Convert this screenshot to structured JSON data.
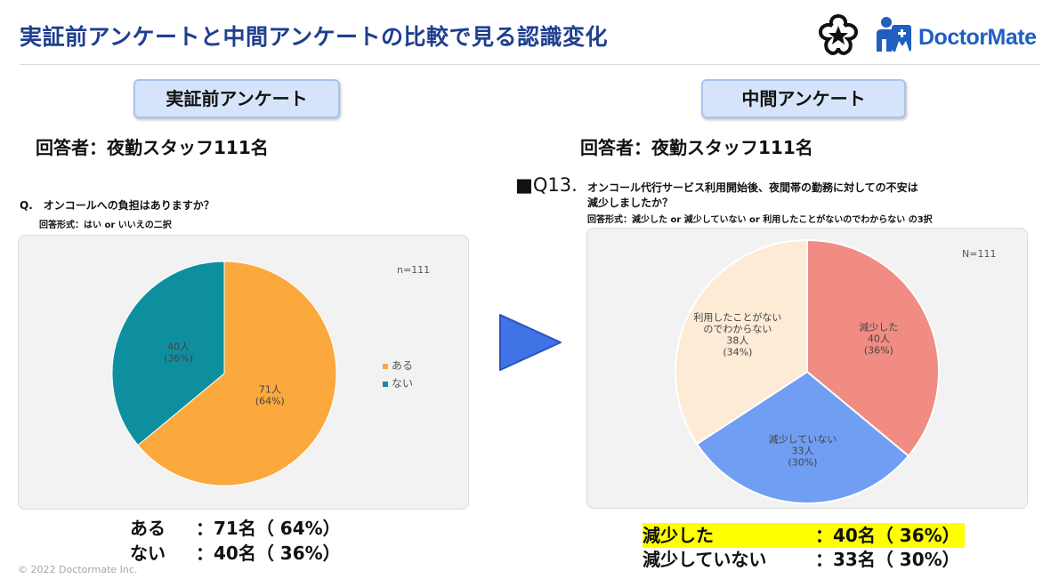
{
  "header": {
    "title": "実証前アンケートと中間アンケートの比較で見る認識変化",
    "brand": "DoctorMate"
  },
  "left": {
    "pill": "実証前アンケート",
    "respondents": "回答者：夜勤スタッフ111名",
    "question": "Q.　オンコールへの負担はありますか？",
    "answer_format": "回答形式：はい or いいえの二択",
    "n_label": "n=111",
    "results": [
      {
        "label": "ある",
        "value": "：71名（ 64%）"
      },
      {
        "label": "ない",
        "value": "：40名（ 36%）"
      }
    ]
  },
  "right": {
    "pill": "中間アンケート",
    "respondents": "回答者：夜勤スタッフ111名",
    "question_mark": "■Q13.",
    "question_line1": "オンコール代行サービス利用開始後、夜間帯の勤務に対しての不安は",
    "question_line2": "減少しましたか？",
    "answer_format": "回答形式：減少した or 減少していない or 利用したことがないのでわからない の3択",
    "n_label": "N=111",
    "results": [
      {
        "label": "減少した",
        "value": "：40名（ 36%）"
      },
      {
        "label": "減少していない",
        "value": "：33名（ 30%）"
      }
    ]
  },
  "footer": {
    "copyright": "© 2022 Doctormate Inc."
  },
  "colors": {
    "title": "#1f3f8f",
    "aru": "#fba93c",
    "nai": "#0e8fa0",
    "decreased": "#f08c82",
    "not_decreased": "#6f9ef2",
    "unknown": "#fdebd6",
    "arrow": "#3f73e6",
    "highlight": "#ffff00"
  },
  "chart_data": [
    {
      "type": "pie",
      "title": "オンコールへの負担はありますか？",
      "n": 111,
      "categories": [
        "ある",
        "ない"
      ],
      "values": [
        71,
        40
      ],
      "labels": [
        [
          "71人",
          "(64%)"
        ],
        [
          "40人",
          "(36%)"
        ]
      ],
      "legend": [
        "ある",
        "ない"
      ],
      "legend_position": "right"
    },
    {
      "type": "pie",
      "title": "オンコール代行サービス利用開始後、夜間帯の勤務に対しての不安は減少しましたか？",
      "n": 111,
      "categories": [
        "減少した",
        "減少していない",
        "利用したことがないのでわからない"
      ],
      "values": [
        40,
        33,
        38
      ],
      "labels": [
        [
          "減少した",
          "40人",
          "(36%)"
        ],
        [
          "減少していない",
          "33人",
          "(30%)"
        ],
        [
          "利用したことがない",
          "のでわからない",
          "38人",
          "(34%)"
        ]
      ]
    }
  ]
}
